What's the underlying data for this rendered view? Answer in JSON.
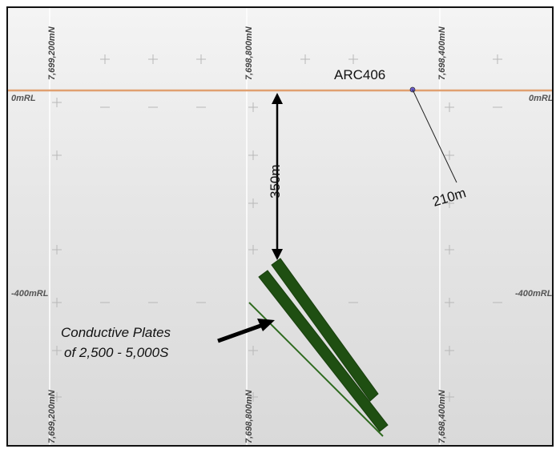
{
  "section": {
    "northings_top": [
      "7,699,200mN",
      "7,698,800mN",
      "7,698,400mN"
    ],
    "northings_bottom": [
      "7,699,200mN",
      "7,698,800mN",
      "7,698,400mN"
    ],
    "rl_levels": {
      "surface_left": "0mRL",
      "surface_right": "0mRL",
      "deep_left": "-400mRL",
      "deep_right": "-400mRL"
    }
  },
  "drillhole": {
    "name": "ARC406",
    "length_label": "210m"
  },
  "depth_marker": {
    "label": "350m"
  },
  "annotation": {
    "line1": "Conductive Plates",
    "line2": "of 2,500 - 5,000S"
  },
  "colors": {
    "surface_line": "#e0a070",
    "plate_fill": "#1f4f12",
    "plate_outline": "#2f6b1f",
    "grid_line": "#ffffff",
    "drillhole_trace": "#222222"
  }
}
